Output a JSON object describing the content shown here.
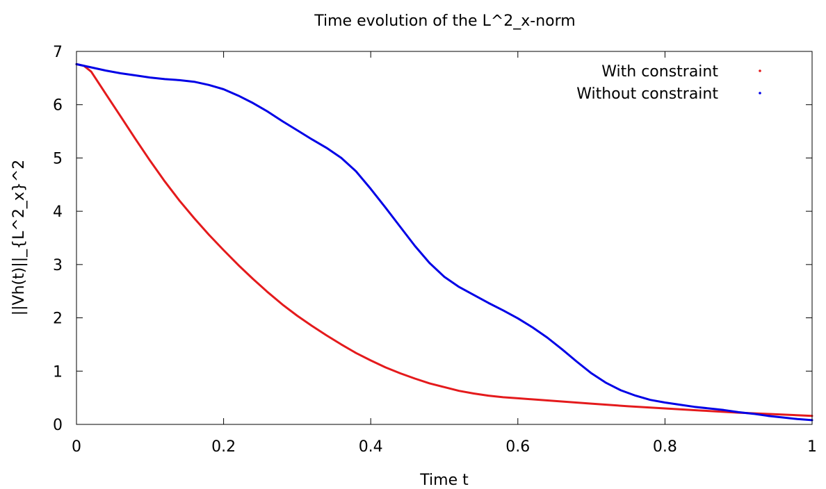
{
  "chart_data": {
    "type": "line",
    "title": "Time evolution of the L^2_x-norm",
    "xlabel": "Time t",
    "ylabel": "||Vh(t)||_{L^2_x}^2",
    "xlim": [
      0,
      1
    ],
    "ylim": [
      0,
      7
    ],
    "xticks": [
      0,
      0.2,
      0.4,
      0.6,
      0.8,
      1
    ],
    "xtick_labels": [
      "0",
      "0.2",
      "0.4",
      "0.6",
      "0.8",
      "1"
    ],
    "yticks": [
      0,
      1,
      2,
      3,
      4,
      5,
      6,
      7
    ],
    "ytick_labels": [
      "0",
      "1",
      "2",
      "3",
      "4",
      "5",
      "6",
      "7"
    ],
    "grid": false,
    "legend_position": "top-right",
    "series": [
      {
        "name": "With constraint",
        "color": "#e41a1c",
        "x": [
          0,
          0.01,
          0.02,
          0.04,
          0.06,
          0.08,
          0.1,
          0.12,
          0.14,
          0.16,
          0.18,
          0.2,
          0.22,
          0.24,
          0.26,
          0.28,
          0.3,
          0.32,
          0.34,
          0.36,
          0.38,
          0.4,
          0.42,
          0.44,
          0.46,
          0.48,
          0.5,
          0.52,
          0.54,
          0.56,
          0.58,
          0.6,
          0.65,
          0.7,
          0.75,
          0.8,
          0.85,
          0.9,
          0.95,
          1.0
        ],
        "y": [
          6.76,
          6.73,
          6.62,
          6.2,
          5.78,
          5.36,
          4.95,
          4.56,
          4.2,
          3.87,
          3.56,
          3.27,
          2.99,
          2.73,
          2.48,
          2.25,
          2.04,
          1.85,
          1.67,
          1.5,
          1.34,
          1.2,
          1.07,
          0.96,
          0.86,
          0.77,
          0.7,
          0.63,
          0.58,
          0.54,
          0.51,
          0.49,
          0.44,
          0.39,
          0.34,
          0.3,
          0.26,
          0.22,
          0.19,
          0.16
        ]
      },
      {
        "name": "Without constraint",
        "color": "#0000e6",
        "x": [
          0,
          0.02,
          0.04,
          0.06,
          0.08,
          0.1,
          0.12,
          0.14,
          0.16,
          0.18,
          0.2,
          0.22,
          0.24,
          0.26,
          0.28,
          0.3,
          0.32,
          0.34,
          0.36,
          0.38,
          0.4,
          0.42,
          0.44,
          0.46,
          0.48,
          0.5,
          0.52,
          0.54,
          0.56,
          0.58,
          0.6,
          0.62,
          0.64,
          0.66,
          0.68,
          0.7,
          0.72,
          0.74,
          0.76,
          0.78,
          0.8,
          0.82,
          0.84,
          0.86,
          0.88,
          0.9,
          0.92,
          0.94,
          0.96,
          0.98,
          1.0
        ],
        "y": [
          6.76,
          6.7,
          6.64,
          6.59,
          6.55,
          6.51,
          6.48,
          6.46,
          6.43,
          6.37,
          6.29,
          6.17,
          6.03,
          5.87,
          5.69,
          5.52,
          5.35,
          5.19,
          5.0,
          4.75,
          4.42,
          4.07,
          3.71,
          3.35,
          3.03,
          2.77,
          2.58,
          2.43,
          2.28,
          2.14,
          1.99,
          1.82,
          1.63,
          1.41,
          1.18,
          0.96,
          0.78,
          0.64,
          0.54,
          0.46,
          0.41,
          0.37,
          0.33,
          0.3,
          0.27,
          0.23,
          0.2,
          0.16,
          0.13,
          0.1,
          0.08
        ]
      }
    ]
  }
}
